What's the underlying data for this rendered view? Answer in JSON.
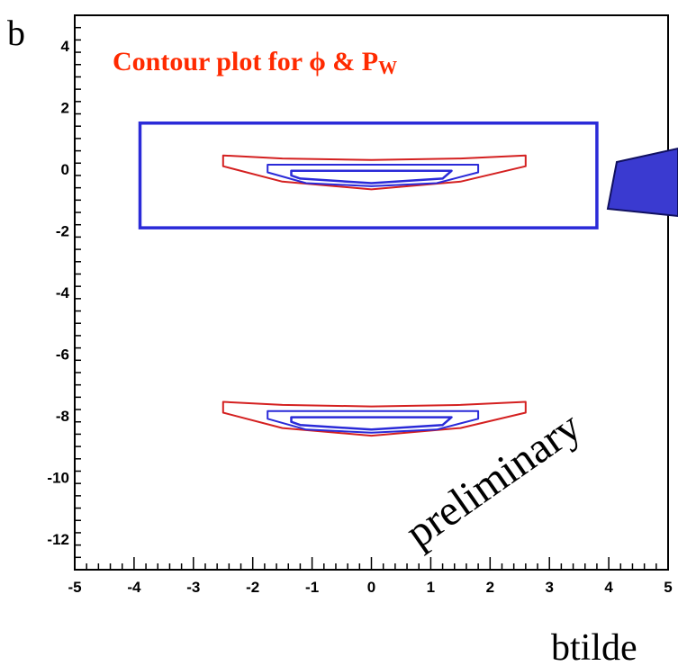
{
  "chart_data": {
    "type": "contour",
    "title": "Contour plot for ϕ & P",
    "title_subscript": "W",
    "xlabel": "btilde",
    "ylabel": "b",
    "xlim": [
      -5,
      5
    ],
    "ylim": [
      -13,
      5
    ],
    "xticks": [
      -5,
      -4,
      -3,
      -2,
      -1,
      0,
      1,
      2,
      3,
      4,
      5
    ],
    "yticks": [
      -12,
      -10,
      -8,
      -6,
      -4,
      -2,
      0,
      2,
      4
    ],
    "xticklabels": [
      "-5",
      "-4",
      "-3",
      "-2",
      "-1",
      "0",
      "1",
      "2",
      "3",
      "4",
      "5"
    ],
    "yticklabels": [
      "-12",
      "-10",
      "-8",
      "-6",
      "-4",
      "-2",
      "0",
      "2",
      "4"
    ],
    "annotation": "preliminary",
    "colors": {
      "outer_contour": "#d42020",
      "inner_contour": "#2a2ad8",
      "highlight_box": "#2a2ad8",
      "title": "#ff2a00",
      "arrow": "#3a3ad0"
    },
    "highlight_box": {
      "x_range": [
        -3.9,
        3.8
      ],
      "y_range": [
        -1.9,
        1.5
      ]
    },
    "islands": [
      {
        "center_y": 0,
        "outer": [
          [
            -2.5,
            0.45
          ],
          [
            -1.5,
            0.35
          ],
          [
            0,
            0.3
          ],
          [
            1.5,
            0.35
          ],
          [
            2.6,
            0.45
          ],
          [
            2.6,
            0.1
          ],
          [
            1.5,
            -0.4
          ],
          [
            0,
            -0.65
          ],
          [
            -1.5,
            -0.4
          ],
          [
            -2.5,
            0.1
          ]
        ],
        "middle": [
          [
            -1.75,
            0.15
          ],
          [
            1.8,
            0.15
          ],
          [
            1.8,
            -0.1
          ],
          [
            1.1,
            -0.45
          ],
          [
            0,
            -0.55
          ],
          [
            -1.1,
            -0.45
          ],
          [
            -1.75,
            -0.1
          ]
        ],
        "inner": [
          [
            -1.35,
            -0.05
          ],
          [
            1.35,
            -0.05
          ],
          [
            1.2,
            -0.3
          ],
          [
            0,
            -0.45
          ],
          [
            -1.2,
            -0.3
          ],
          [
            -1.35,
            -0.2
          ]
        ]
      },
      {
        "center_y": -8,
        "outer": [
          [
            -2.5,
            -7.55
          ],
          [
            -1.5,
            -7.65
          ],
          [
            0,
            -7.7
          ],
          [
            1.5,
            -7.65
          ],
          [
            2.6,
            -7.55
          ],
          [
            2.6,
            -7.9
          ],
          [
            1.5,
            -8.4
          ],
          [
            0,
            -8.65
          ],
          [
            -1.5,
            -8.4
          ],
          [
            -2.5,
            -7.9
          ]
        ],
        "middle": [
          [
            -1.75,
            -7.85
          ],
          [
            1.8,
            -7.85
          ],
          [
            1.8,
            -8.1
          ],
          [
            1.1,
            -8.45
          ],
          [
            0,
            -8.55
          ],
          [
            -1.1,
            -8.45
          ],
          [
            -1.75,
            -8.1
          ]
        ],
        "inner": [
          [
            -1.35,
            -8.05
          ],
          [
            1.35,
            -8.05
          ],
          [
            1.2,
            -8.3
          ],
          [
            0,
            -8.45
          ],
          [
            -1.2,
            -8.3
          ],
          [
            -1.35,
            -8.2
          ]
        ]
      }
    ]
  }
}
